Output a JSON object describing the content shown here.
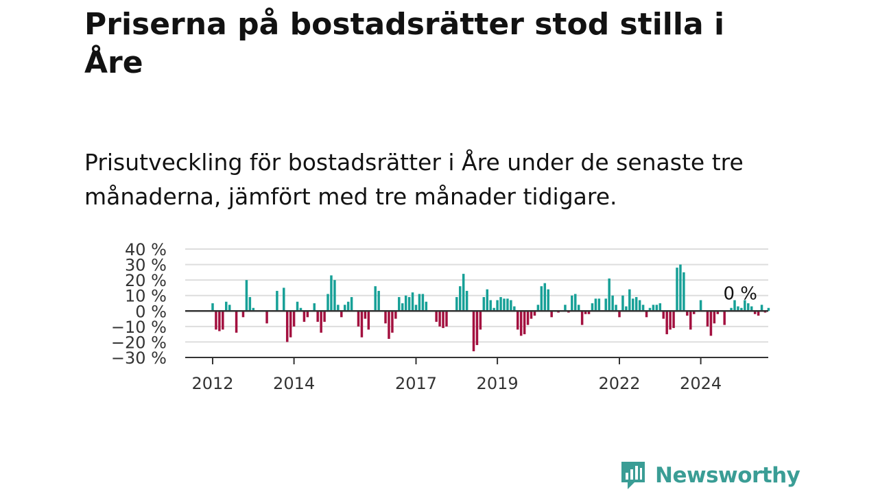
{
  "title": "Priserna på bostadsrätter stod stilla i Åre",
  "subtitle": "Prisutveckling för bostadsrätter i Åre under de senaste tre månaderna, jämfört med tre månader tidigare.",
  "logo": {
    "text": "Newsworthy",
    "icon": "newsworthy-bar-chart-icon",
    "color": "#3a9d95"
  },
  "chart_data": {
    "type": "bar",
    "title": "",
    "xlabel": "",
    "ylabel": "",
    "unit": "%",
    "ylim": [
      -30,
      40
    ],
    "yticks": [
      {
        "value": 40,
        "label": "40 %"
      },
      {
        "value": 30,
        "label": "30 %"
      },
      {
        "value": 20,
        "label": "20 %"
      },
      {
        "value": 10,
        "label": "10 %"
      },
      {
        "value": 0,
        "label": "0 %"
      },
      {
        "value": -10,
        "label": "−10 %"
      },
      {
        "value": -20,
        "label": "−20 %"
      },
      {
        "value": -30,
        "label": "−30 %"
      }
    ],
    "xticks": [
      {
        "year": 2012,
        "label": "2012"
      },
      {
        "year": 2014,
        "label": "2014"
      },
      {
        "year": 2017,
        "label": "2017"
      },
      {
        "year": 2019,
        "label": "2019"
      },
      {
        "year": 2022,
        "label": "2022"
      },
      {
        "year": 2024,
        "label": "2024"
      }
    ],
    "grid": true,
    "colors": {
      "positive": "#17a097",
      "negative": "#a3103f",
      "zero_line": "#333333",
      "grid": "#dddddd",
      "axis": "#333333"
    },
    "start": "2012-01",
    "frequency": "monthly",
    "values": [
      5,
      -12,
      -13,
      -12,
      6,
      4,
      0,
      -14,
      0,
      -4,
      20,
      9,
      2,
      0,
      0,
      0,
      -8,
      0,
      0,
      13,
      0,
      15,
      -20,
      -17,
      -10,
      6,
      2,
      -7,
      -4,
      0,
      5,
      -7,
      -14,
      -7,
      11,
      23,
      20,
      4,
      -4,
      4,
      6,
      9,
      0,
      -10,
      -17,
      -5,
      -12,
      0,
      16,
      13,
      0,
      -8,
      -18,
      -14,
      -5,
      9,
      5,
      10,
      9,
      12,
      4,
      11,
      11,
      6,
      0,
      0,
      -7,
      -10,
      -11,
      -10,
      0,
      0,
      9,
      16,
      24,
      13,
      0,
      -26,
      -22,
      -12,
      9,
      14,
      7,
      2,
      7,
      9,
      8,
      8,
      7,
      3,
      -12,
      -16,
      -15,
      -9,
      -5,
      -3,
      4,
      16,
      18,
      14,
      -4,
      0,
      -1,
      0,
      4,
      -1,
      10,
      11,
      4,
      -9,
      -2,
      -2,
      5,
      8,
      8,
      0,
      8,
      21,
      10,
      4,
      -4,
      10,
      3,
      14,
      8,
      9,
      7,
      4,
      -4,
      2,
      4,
      4,
      5,
      -5,
      -15,
      -12,
      -11,
      28,
      30,
      25,
      -3,
      -12,
      -2,
      0,
      7,
      0,
      -10,
      -16,
      -8,
      -2,
      0,
      -9,
      0,
      2,
      7,
      3,
      2,
      7,
      5,
      3,
      -2,
      -3,
      4,
      -1,
      2,
      0
    ],
    "annotations": [
      {
        "label": "0 %",
        "value": 0
      }
    ]
  }
}
